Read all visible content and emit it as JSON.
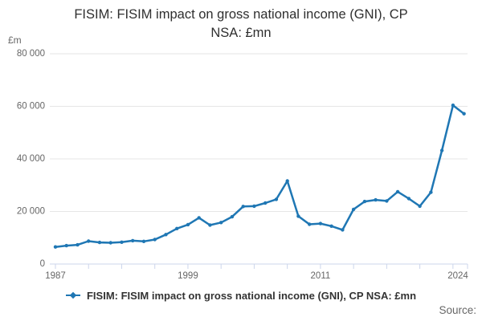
{
  "header": {
    "title_lines": [
      "FISIM: FISIM impact on gross national income (GNI), CP",
      "NSA: £mn"
    ]
  },
  "legend": {
    "label": "FISIM: FISIM impact on gross national income (GNI), CP NSA: £mn"
  },
  "footer": {
    "source_label": "Source:"
  },
  "chart_data": {
    "type": "line",
    "title": "FISIM: FISIM impact on gross national income (GNI), CP NSA: £mn",
    "unit_label": "£m",
    "series_name": "FISIM: FISIM impact on gross national income (GNI), CP NSA: £mn",
    "x": [
      1987,
      1988,
      1989,
      1990,
      1991,
      1992,
      1993,
      1994,
      1995,
      1996,
      1997,
      1998,
      1999,
      2000,
      2001,
      2002,
      2003,
      2004,
      2005,
      2006,
      2007,
      2008,
      2009,
      2010,
      2011,
      2012,
      2013,
      2014,
      2015,
      2016,
      2017,
      2018,
      2019,
      2020,
      2021,
      2022,
      2023,
      2024
    ],
    "values": [
      6500,
      7000,
      7300,
      8700,
      8200,
      8100,
      8300,
      8900,
      8600,
      9300,
      11200,
      13500,
      15000,
      17600,
      14800,
      15800,
      18000,
      21900,
      22000,
      23200,
      24600,
      31600,
      18200,
      15100,
      15400,
      14400,
      13000,
      20800,
      23800,
      24400,
      24000,
      27500,
      24900,
      22000,
      27300,
      43200,
      60400,
      57200
    ],
    "xlabel": "",
    "ylabel": "£m",
    "xlim": [
      1987,
      2024
    ],
    "ylim": [
      0,
      80000
    ],
    "ytick_step": 20000,
    "ytick_labels": [
      "0",
      "20 000",
      "40 000",
      "60 000",
      "80 000"
    ],
    "xtick_labeled_years": [
      1987,
      1999,
      2011,
      2024
    ],
    "xtick_minor_interval_years": 3,
    "grid": "horizontal-only",
    "legend_position": "bottom-center",
    "colors": {
      "line": "#1f77b4",
      "axis_line": "#ccd6eb",
      "gridline": "#e6e6e6",
      "tick_text": "#666666",
      "title_text": "#2f2f2f",
      "legend_text": "#333333"
    }
  }
}
